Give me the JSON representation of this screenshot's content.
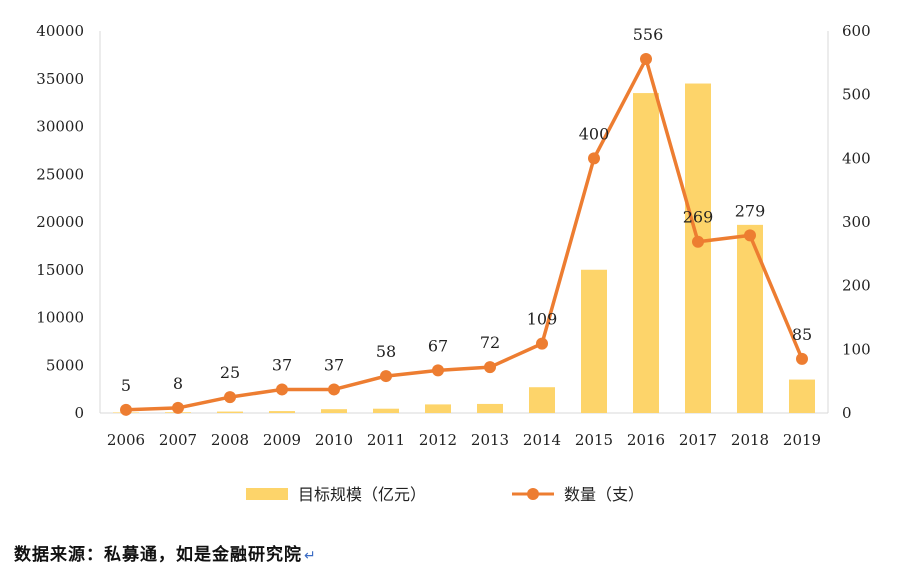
{
  "chart_data": {
    "type": "bar",
    "categories": [
      "2006",
      "2007",
      "2008",
      "2009",
      "2010",
      "2011",
      "2012",
      "2013",
      "2014",
      "2015",
      "2016",
      "2017",
      "2018",
      "2019"
    ],
    "series": [
      {
        "name": "目标规模（亿元）",
        "chart": "bar",
        "axis": "left",
        "color": "#FDD46A",
        "values": [
          60,
          80,
          150,
          200,
          400,
          450,
          900,
          950,
          2700,
          15000,
          33500,
          34500,
          19700,
          3500
        ]
      },
      {
        "name": "数量（支）",
        "chart": "line",
        "axis": "right",
        "color": "#ED7D31",
        "values": [
          5,
          8,
          25,
          37,
          37,
          58,
          67,
          72,
          109,
          400,
          556,
          269,
          279,
          85
        ]
      }
    ],
    "y_left": {
      "min": 0,
      "max": 40000,
      "ticks": [
        "0",
        "5000",
        "10000",
        "15000",
        "20000",
        "25000",
        "30000",
        "35000",
        "40000"
      ]
    },
    "y_right": {
      "min": 0,
      "max": 600,
      "ticks": [
        "0",
        "100",
        "200",
        "300",
        "400",
        "500",
        "600"
      ]
    },
    "data_labels": [
      "5",
      "8",
      "25",
      "37",
      "37",
      "58",
      "67",
      "72",
      "109",
      "400",
      "556",
      "269",
      "279",
      "85"
    ],
    "legend": [
      {
        "label": "目标规模（亿元）",
        "marker": "bar"
      },
      {
        "label": "数量（支）",
        "marker": "line-dot"
      }
    ],
    "legend_position": "bottom",
    "grid": false
  },
  "source_note": "数据来源：私募通，如是金融研究院",
  "return_mark": "↵"
}
